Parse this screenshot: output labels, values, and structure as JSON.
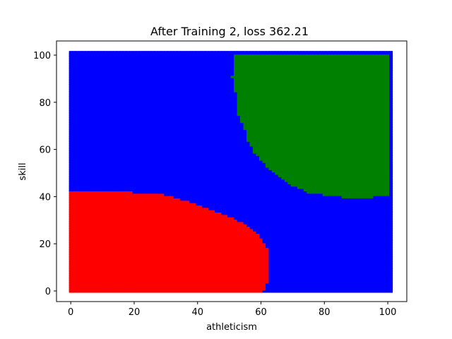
{
  "chart_data": {
    "type": "scatter",
    "title": "After Training 2, loss 362.21",
    "xlabel": "athleticism",
    "ylabel": "skill",
    "xlim": [
      -4.5,
      106
    ],
    "ylim": [
      -4.5,
      106
    ],
    "xticks": [
      0,
      20,
      40,
      60,
      80,
      100
    ],
    "yticks": [
      0,
      20,
      40,
      60,
      80,
      100
    ],
    "grid": false,
    "grid_range": {
      "min": 0,
      "max": 101,
      "step": 1
    },
    "colors": {
      "class_red": "#ff0000",
      "class_blue": "#0000ff",
      "class_green": "#008000"
    },
    "regions": [
      {
        "class": "class_red",
        "description_values": "lower-left region",
        "boundary": [
          [
            0,
            43
          ],
          [
            18,
            43
          ],
          [
            20,
            42
          ],
          [
            30,
            41
          ],
          [
            40,
            37
          ],
          [
            50,
            32
          ],
          [
            56,
            28
          ],
          [
            60,
            23
          ],
          [
            63,
            17
          ],
          [
            63,
            6
          ],
          [
            62,
            3
          ],
          [
            61,
            0
          ],
          [
            0,
            0
          ]
        ]
      },
      {
        "class": "class_green",
        "description_values": "upper-right region",
        "boundary": [
          [
            52,
            101
          ],
          [
            101,
            101
          ],
          [
            101,
            41
          ],
          [
            96,
            40
          ],
          [
            86,
            40
          ],
          [
            80,
            41
          ],
          [
            75,
            42
          ],
          [
            70,
            45
          ],
          [
            65,
            50
          ],
          [
            62,
            53
          ],
          [
            60,
            56
          ],
          [
            58,
            59
          ],
          [
            56,
            64
          ],
          [
            55,
            69
          ],
          [
            53,
            75
          ],
          [
            53,
            80
          ],
          [
            52,
            85
          ],
          [
            51,
            91
          ],
          [
            52,
            95
          ]
        ]
      }
    ]
  }
}
